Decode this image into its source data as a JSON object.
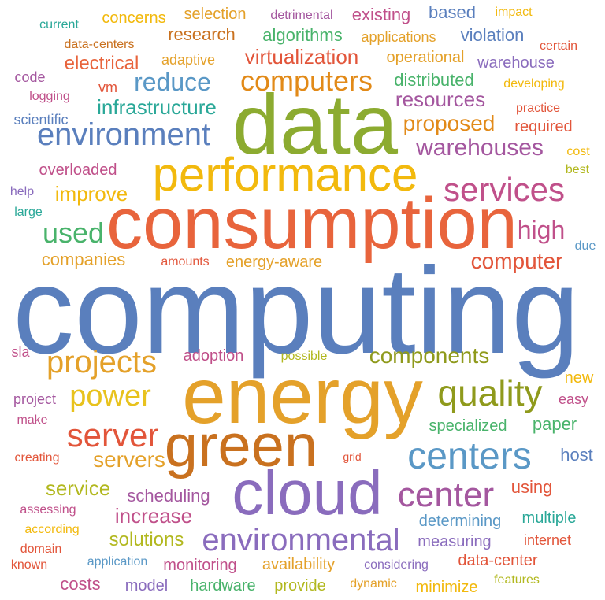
{
  "words": [
    {
      "text": "computing",
      "color": "#5a7fbd"
    },
    {
      "text": "energy",
      "color": "#e4a12a"
    },
    {
      "text": "consumption",
      "color": "#e8643c"
    },
    {
      "text": "data",
      "color": "#8cab30"
    },
    {
      "text": "green",
      "color": "#c9711f"
    },
    {
      "text": "cloud",
      "color": "#8a6cbd"
    },
    {
      "text": "centers",
      "color": "#5a98c6"
    },
    {
      "text": "performance",
      "color": "#f2b90d"
    },
    {
      "text": "environmental",
      "color": "#8a6cbd"
    },
    {
      "text": "quality",
      "color": "#8f9a1c"
    },
    {
      "text": "server",
      "color": "#e2553a"
    },
    {
      "text": "center",
      "color": "#a4579f"
    },
    {
      "text": "services",
      "color": "#c0508a"
    },
    {
      "text": "environment",
      "color": "#5a7fbd"
    },
    {
      "text": "projects",
      "color": "#e4a12a"
    },
    {
      "text": "power",
      "color": "#e8c21d"
    },
    {
      "text": "computers",
      "color": "#e28a18"
    },
    {
      "text": "used",
      "color": "#49b36b"
    },
    {
      "text": "warehouses",
      "color": "#a4579f"
    },
    {
      "text": "high",
      "color": "#c0508a"
    },
    {
      "text": "reduce",
      "color": "#5a98c6"
    },
    {
      "text": "servers",
      "color": "#e4a12a"
    },
    {
      "text": "proposed",
      "color": "#e28a18"
    },
    {
      "text": "computer",
      "color": "#e2553a"
    },
    {
      "text": "components",
      "color": "#8f9a1c"
    },
    {
      "text": "increase",
      "color": "#c0508a"
    },
    {
      "text": "scheduling",
      "color": "#a4579f"
    },
    {
      "text": "solutions",
      "color": "#b2b81f"
    },
    {
      "text": "improve",
      "color": "#f2b90d"
    },
    {
      "text": "infrastructure",
      "color": "#2aa898"
    },
    {
      "text": "resources",
      "color": "#a4579f"
    },
    {
      "text": "virtualization",
      "color": "#e2553a"
    },
    {
      "text": "electrical",
      "color": "#e8643c"
    },
    {
      "text": "research",
      "color": "#c9711f"
    },
    {
      "text": "companies",
      "color": "#e4a12a"
    },
    {
      "text": "service",
      "color": "#b2b81f"
    },
    {
      "text": "paper",
      "color": "#49b36b"
    },
    {
      "text": "host",
      "color": "#5a7fbd"
    },
    {
      "text": "using",
      "color": "#e2553a"
    },
    {
      "text": "distributed",
      "color": "#49b36b"
    },
    {
      "text": "algorithms",
      "color": "#49b36b"
    },
    {
      "text": "operational",
      "color": "#e4a12a"
    },
    {
      "text": "warehouse",
      "color": "#8a6cbd"
    },
    {
      "text": "violation",
      "color": "#5a7fbd"
    },
    {
      "text": "based",
      "color": "#5a7fbd"
    },
    {
      "text": "existing",
      "color": "#c0508a"
    },
    {
      "text": "selection",
      "color": "#e4a12a"
    },
    {
      "text": "concerns",
      "color": "#f2b90d"
    },
    {
      "text": "overloaded",
      "color": "#c0508a"
    },
    {
      "text": "required",
      "color": "#e2553a"
    },
    {
      "text": "energy-aware",
      "color": "#e4a12a"
    },
    {
      "text": "adoption",
      "color": "#c0508a"
    },
    {
      "text": "specialized",
      "color": "#49b36b"
    },
    {
      "text": "determining",
      "color": "#5a98c6"
    },
    {
      "text": "measuring",
      "color": "#8a6cbd"
    },
    {
      "text": "multiple",
      "color": "#2aa898"
    },
    {
      "text": "monitoring",
      "color": "#c0508a"
    },
    {
      "text": "availability",
      "color": "#e4a12a"
    },
    {
      "text": "data-center",
      "color": "#e2553a"
    },
    {
      "text": "model",
      "color": "#8a6cbd"
    },
    {
      "text": "hardware",
      "color": "#49b36b"
    },
    {
      "text": "provide",
      "color": "#b2b81f"
    },
    {
      "text": "minimize",
      "color": "#f2b90d"
    },
    {
      "text": "costs",
      "color": "#c0508a"
    },
    {
      "text": "adaptive",
      "color": "#e4a12a"
    },
    {
      "text": "new",
      "color": "#f2b90d"
    },
    {
      "text": "data-centers",
      "color": "#c9711f"
    },
    {
      "text": "applications",
      "color": "#e4a12a"
    },
    {
      "text": "current",
      "color": "#2aa898"
    },
    {
      "text": "detrimental",
      "color": "#a4579f"
    },
    {
      "text": "impact",
      "color": "#f2b90d"
    },
    {
      "text": "certain",
      "color": "#e2553a"
    },
    {
      "text": "developing",
      "color": "#f2b90d"
    },
    {
      "text": "practice",
      "color": "#e2553a"
    },
    {
      "text": "cost",
      "color": "#f2b90d"
    },
    {
      "text": "best",
      "color": "#b2b81f"
    },
    {
      "text": "code",
      "color": "#a4579f"
    },
    {
      "text": "vm",
      "color": "#e2553a"
    },
    {
      "text": "logging",
      "color": "#c0508a"
    },
    {
      "text": "scientific",
      "color": "#5a7fbd"
    },
    {
      "text": "help",
      "color": "#8a6cbd"
    },
    {
      "text": "large",
      "color": "#2aa898"
    },
    {
      "text": "amounts",
      "color": "#e2553a"
    },
    {
      "text": "due",
      "color": "#5a98c6"
    },
    {
      "text": "sla",
      "color": "#c0508a"
    },
    {
      "text": "possible",
      "color": "#b2b81f"
    },
    {
      "text": "project",
      "color": "#a4579f"
    },
    {
      "text": "make",
      "color": "#c0508a"
    },
    {
      "text": "easy",
      "color": "#c0508a"
    },
    {
      "text": "creating",
      "color": "#e2553a"
    },
    {
      "text": "grid",
      "color": "#e2553a"
    },
    {
      "text": "assessing",
      "color": "#c0508a"
    },
    {
      "text": "according",
      "color": "#f2b90d"
    },
    {
      "text": "domain",
      "color": "#e2553a"
    },
    {
      "text": "known",
      "color": "#e2553a"
    },
    {
      "text": "application",
      "color": "#5a98c6"
    },
    {
      "text": "considering",
      "color": "#8a6cbd"
    },
    {
      "text": "internet",
      "color": "#e2553a"
    },
    {
      "text": "dynamic",
      "color": "#e4a12a"
    },
    {
      "text": "features",
      "color": "#b2b81f"
    }
  ]
}
